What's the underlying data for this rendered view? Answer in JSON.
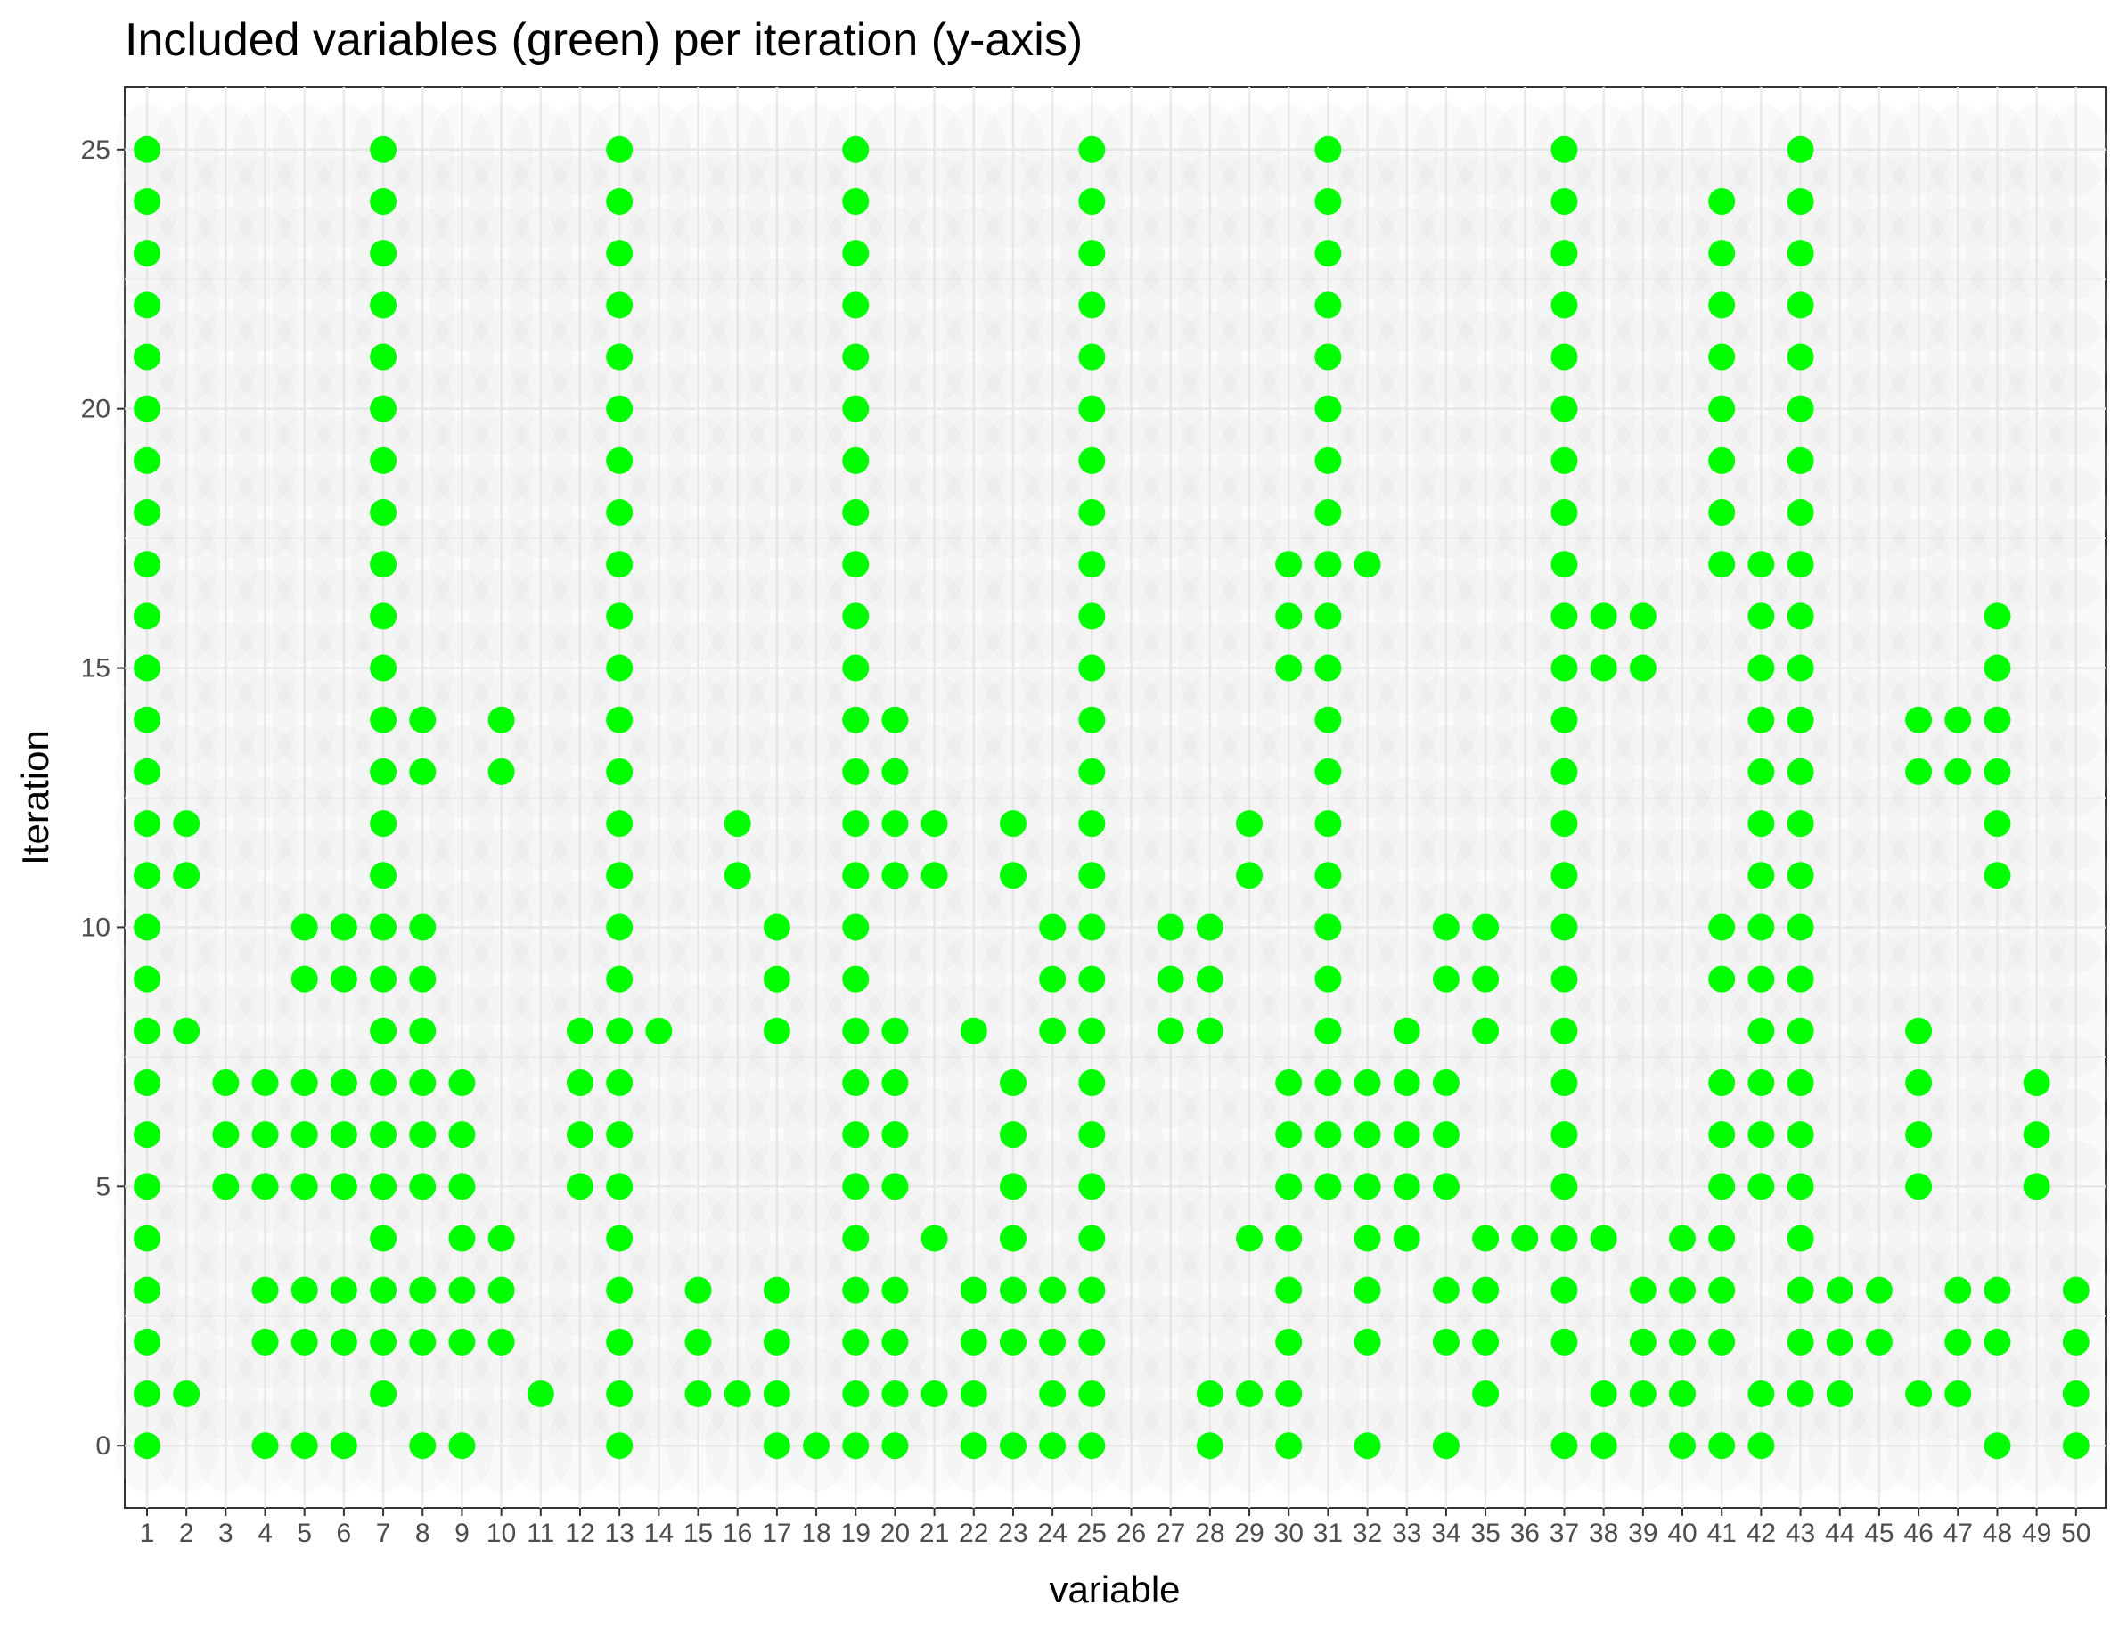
{
  "chart_data": {
    "type": "scatter",
    "title": "Included variables (green) per iteration (y-axis)",
    "xlabel": "variable",
    "ylabel": "Iteration",
    "x_categories": [
      1,
      2,
      3,
      4,
      5,
      6,
      7,
      8,
      9,
      10,
      11,
      12,
      13,
      14,
      15,
      16,
      17,
      18,
      19,
      20,
      21,
      22,
      23,
      24,
      25,
      26,
      27,
      28,
      29,
      30,
      31,
      32,
      33,
      34,
      35,
      36,
      37,
      38,
      39,
      40,
      41,
      42,
      43,
      44,
      45,
      46,
      47,
      48,
      49,
      50
    ],
    "y_ticks": [
      0,
      5,
      10,
      15,
      20,
      25
    ],
    "ylim": [
      -1.2,
      26.2
    ],
    "grid": true,
    "background_point_color": "#dcdcdc",
    "included_color": "#00ff00",
    "series": [
      {
        "values": {
          "1": [
            1,
            2,
            3,
            4,
            5,
            6,
            7,
            8,
            9,
            10,
            11,
            12,
            13,
            14,
            15,
            16,
            17,
            18,
            19,
            20,
            21,
            22,
            23,
            24,
            25,
            0
          ],
          "2": [
            1,
            8,
            11,
            12
          ],
          "3": [
            5,
            6,
            7
          ],
          "4": [
            0,
            2,
            3,
            5,
            6,
            7
          ],
          "5": [
            0,
            2,
            3,
            5,
            6,
            7,
            9,
            10
          ],
          "6": [
            0,
            2,
            3,
            5,
            6,
            7,
            9,
            10
          ],
          "7": [
            1,
            2,
            3,
            4,
            5,
            6,
            7,
            8,
            9,
            10,
            11,
            12,
            13,
            14,
            15,
            16,
            17,
            18,
            19,
            20,
            21,
            22,
            23,
            24,
            25
          ],
          "8": [
            0,
            2,
            3,
            5,
            6,
            7,
            8,
            9,
            10,
            13,
            14
          ],
          "9": [
            0,
            2,
            3,
            4,
            5,
            6,
            7
          ],
          "10": [
            2,
            3,
            4,
            13,
            14
          ],
          "11": [
            1
          ],
          "12": [
            5,
            6,
            7,
            8
          ],
          "13": [
            0,
            1,
            2,
            3,
            4,
            5,
            6,
            7,
            8,
            9,
            10,
            11,
            12,
            13,
            14,
            15,
            16,
            17,
            18,
            19,
            20,
            21,
            22,
            23,
            24,
            25
          ],
          "14": [
            8
          ],
          "15": [
            1,
            2,
            3
          ],
          "16": [
            1,
            11,
            12
          ],
          "17": [
            0,
            1,
            2,
            3,
            8,
            9,
            10
          ],
          "18": [
            0
          ],
          "19": [
            0,
            1,
            2,
            3,
            4,
            5,
            6,
            7,
            8,
            9,
            10,
            11,
            12,
            13,
            14,
            15,
            16,
            17,
            18,
            19,
            20,
            21,
            22,
            23,
            24,
            25
          ],
          "20": [
            0,
            1,
            2,
            3,
            5,
            6,
            7,
            8,
            11,
            12,
            13,
            14
          ],
          "21": [
            1,
            4,
            11,
            12
          ],
          "22": [
            0,
            1,
            2,
            3,
            8
          ],
          "23": [
            0,
            2,
            3,
            4,
            5,
            6,
            7,
            11,
            12
          ],
          "24": [
            0,
            1,
            2,
            3,
            8,
            9,
            10
          ],
          "25": [
            0,
            1,
            2,
            3,
            4,
            5,
            6,
            7,
            8,
            9,
            10,
            11,
            12,
            13,
            14,
            15,
            16,
            17,
            18,
            19,
            20,
            21,
            22,
            23,
            24,
            25
          ],
          "26": [],
          "27": [
            8,
            9,
            10
          ],
          "28": [
            0,
            1,
            8,
            9,
            10
          ],
          "29": [
            1,
            4,
            11,
            12
          ],
          "30": [
            0,
            1,
            2,
            3,
            4,
            5,
            6,
            7,
            15,
            16,
            17
          ],
          "31": [
            5,
            6,
            7,
            8,
            9,
            10,
            11,
            12,
            13,
            14,
            15,
            16,
            17,
            18,
            19,
            20,
            21,
            22,
            23,
            24,
            25
          ],
          "32": [
            0,
            2,
            3,
            4,
            5,
            6,
            7,
            17
          ],
          "33": [
            4,
            5,
            6,
            7,
            8
          ],
          "34": [
            0,
            2,
            3,
            5,
            6,
            7,
            9,
            10
          ],
          "35": [
            1,
            2,
            3,
            4,
            8,
            9,
            10
          ],
          "36": [
            4
          ],
          "37": [
            0,
            2,
            3,
            4,
            5,
            6,
            7,
            8,
            9,
            10,
            11,
            12,
            13,
            14,
            15,
            16,
            17,
            18,
            19,
            20,
            21,
            22,
            23,
            24,
            25
          ],
          "38": [
            0,
            1,
            4,
            15,
            16
          ],
          "39": [
            1,
            2,
            3,
            15,
            16
          ],
          "40": [
            0,
            1,
            2,
            3,
            4
          ],
          "41": [
            0,
            2,
            3,
            4,
            5,
            6,
            7,
            9,
            10,
            17,
            18,
            19,
            20,
            21,
            22,
            23,
            24
          ],
          "42": [
            0,
            1,
            5,
            6,
            7,
            8,
            9,
            10,
            11,
            12,
            13,
            14,
            15,
            16,
            17
          ],
          "43": [
            1,
            2,
            3,
            4,
            5,
            6,
            7,
            8,
            9,
            10,
            11,
            12,
            13,
            14,
            15,
            16,
            17,
            18,
            19,
            20,
            21,
            22,
            23,
            24,
            25
          ],
          "44": [
            1,
            2,
            3
          ],
          "45": [
            2,
            3
          ],
          "46": [
            1,
            5,
            6,
            7,
            8,
            13,
            14
          ],
          "47": [
            1,
            2,
            3,
            13,
            14
          ],
          "48": [
            0,
            2,
            3,
            11,
            12,
            13,
            14,
            15,
            16
          ],
          "49": [
            5,
            6,
            7
          ],
          "50": [
            0,
            1,
            2,
            3
          ]
        }
      }
    ]
  }
}
